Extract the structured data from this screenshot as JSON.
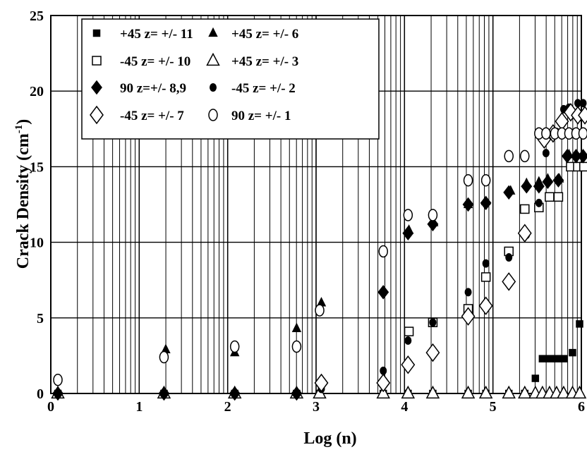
{
  "chart_data": {
    "type": "scatter",
    "xlabel": "Log (n)",
    "ylabel": "Crack Density (cm",
    "ylabel_superscript": "-1",
    "ylabel_close": ")",
    "xlim": [
      0,
      6
    ],
    "ylim": [
      0,
      25
    ],
    "x_ticks": [
      "0",
      "1",
      "2",
      "3",
      "4",
      "5",
      "6"
    ],
    "y_ticks": [
      "0",
      "5",
      "10",
      "15",
      "20",
      "25"
    ],
    "grid": "log-cycle vertical lines, horizontal lines every 5",
    "legend_position": "top-left",
    "series": [
      {
        "name": "+45 z= +/- 11",
        "marker": "square-filled",
        "points": [
          [
            0.08,
            0
          ],
          [
            1.28,
            0
          ],
          [
            2.08,
            0
          ],
          [
            2.78,
            0
          ],
          [
            3.04,
            0
          ],
          [
            3.76,
            0
          ],
          [
            4.04,
            0
          ],
          [
            4.32,
            0
          ],
          [
            4.72,
            0
          ],
          [
            4.92,
            0
          ],
          [
            5.18,
            0
          ],
          [
            5.36,
            0
          ],
          [
            5.48,
            1
          ],
          [
            5.56,
            2.3
          ],
          [
            5.64,
            2.3
          ],
          [
            5.72,
            2.3
          ],
          [
            5.8,
            2.3
          ],
          [
            5.9,
            2.7
          ],
          [
            5.98,
            4.6
          ]
        ]
      },
      {
        "name": "+45 z= +/- 6",
        "marker": "triangle-filled",
        "points": [
          [
            1.3,
            2.9
          ],
          [
            2.08,
            2.7
          ],
          [
            2.78,
            4.3
          ],
          [
            3.06,
            6
          ],
          [
            4.05,
            10.8
          ],
          [
            4.33,
            11.3
          ],
          [
            4.72,
            12.5
          ],
          [
            4.92,
            12.7
          ],
          [
            5.2,
            13.4
          ],
          [
            5.38,
            13.9
          ],
          [
            5.52,
            14
          ],
          [
            5.62,
            14.2
          ],
          [
            5.75,
            14.2
          ],
          [
            5.86,
            15.8
          ],
          [
            5.94,
            15.8
          ],
          [
            6.02,
            15.8
          ]
        ]
      },
      {
        "name": "-45 z= +/- 10",
        "marker": "square-open",
        "points": [
          [
            4.05,
            4.1
          ],
          [
            4.32,
            4.7
          ],
          [
            4.72,
            5.6
          ],
          [
            4.92,
            7.7
          ],
          [
            5.18,
            9.4
          ],
          [
            5.36,
            12.2
          ],
          [
            5.52,
            12.3
          ],
          [
            5.64,
            13
          ],
          [
            5.74,
            13
          ],
          [
            5.88,
            15
          ],
          [
            5.96,
            15
          ],
          [
            6.03,
            15
          ]
        ]
      },
      {
        "name": "+45 z= +/- 3",
        "marker": "triangle-open",
        "points": [
          [
            0.08,
            0
          ],
          [
            1.28,
            0
          ],
          [
            2.08,
            0
          ],
          [
            2.78,
            0
          ],
          [
            3.04,
            0
          ],
          [
            3.76,
            0
          ],
          [
            4.04,
            0
          ],
          [
            4.32,
            0
          ],
          [
            4.72,
            0
          ],
          [
            4.92,
            0
          ],
          [
            5.18,
            0
          ],
          [
            5.36,
            0
          ],
          [
            5.48,
            0
          ],
          [
            5.56,
            0
          ],
          [
            5.64,
            0
          ],
          [
            5.72,
            0
          ],
          [
            5.8,
            0
          ],
          [
            5.9,
            0
          ],
          [
            5.98,
            0
          ]
        ]
      },
      {
        "name": "90 z=+/- 8,9",
        "marker": "diamond-filled",
        "points": [
          [
            0.08,
            0
          ],
          [
            1.28,
            0
          ],
          [
            2.08,
            0
          ],
          [
            2.78,
            0
          ],
          [
            3.76,
            6.7
          ],
          [
            4.04,
            10.6
          ],
          [
            4.32,
            11.2
          ],
          [
            4.72,
            12.5
          ],
          [
            4.92,
            12.6
          ],
          [
            5.18,
            13.3
          ],
          [
            5.38,
            13.7
          ],
          [
            5.52,
            13.7
          ],
          [
            5.62,
            14
          ],
          [
            5.74,
            14.1
          ],
          [
            5.84,
            15.7
          ],
          [
            5.94,
            15.7
          ],
          [
            6.02,
            15.7
          ]
        ]
      },
      {
        "name": "-45 z= +/- 2",
        "marker": "circle-filled",
        "points": [
          [
            0.08,
            0
          ],
          [
            1.28,
            0
          ],
          [
            2.08,
            0
          ],
          [
            2.78,
            0
          ],
          [
            3.06,
            0.3
          ],
          [
            3.76,
            1.5
          ],
          [
            4.04,
            3.5
          ],
          [
            4.32,
            4.7
          ],
          [
            4.72,
            6.7
          ],
          [
            4.92,
            8.6
          ],
          [
            5.18,
            9
          ],
          [
            5.38,
            10.5
          ],
          [
            5.52,
            12.6
          ],
          [
            5.6,
            15.9
          ],
          [
            5.72,
            17.3
          ],
          [
            5.8,
            18.8
          ],
          [
            5.86,
            18.9
          ],
          [
            5.96,
            19.2
          ],
          [
            6.02,
            19.2
          ]
        ]
      },
      {
        "name": "-45 z= +/- 7",
        "marker": "diamond-open",
        "points": [
          [
            3.06,
            0.7
          ],
          [
            3.76,
            0.7
          ],
          [
            4.04,
            1.9
          ],
          [
            4.32,
            2.7
          ],
          [
            4.72,
            5.1
          ],
          [
            4.92,
            5.8
          ],
          [
            5.18,
            7.4
          ],
          [
            5.36,
            10.6
          ],
          [
            5.58,
            16.8
          ],
          [
            5.68,
            17.2
          ],
          [
            5.78,
            18
          ],
          [
            5.88,
            18.6
          ],
          [
            5.96,
            18.4
          ],
          [
            6.04,
            18.4
          ]
        ]
      },
      {
        "name": "90 z= +/- 1",
        "marker": "circle-open",
        "points": [
          [
            0.08,
            0.9
          ],
          [
            1.28,
            2.4
          ],
          [
            2.08,
            3.1
          ],
          [
            2.78,
            3.1
          ],
          [
            3.04,
            5.5
          ],
          [
            3.76,
            9.4
          ],
          [
            4.04,
            11.8
          ],
          [
            4.32,
            11.8
          ],
          [
            4.72,
            14.1
          ],
          [
            4.92,
            14.1
          ],
          [
            5.18,
            15.7
          ],
          [
            5.36,
            15.7
          ],
          [
            5.52,
            17.2
          ],
          [
            5.6,
            17.2
          ],
          [
            5.7,
            17.2
          ],
          [
            5.78,
            17.2
          ],
          [
            5.86,
            17.2
          ],
          [
            5.94,
            17.2
          ],
          [
            6.02,
            17.2
          ]
        ]
      }
    ]
  }
}
